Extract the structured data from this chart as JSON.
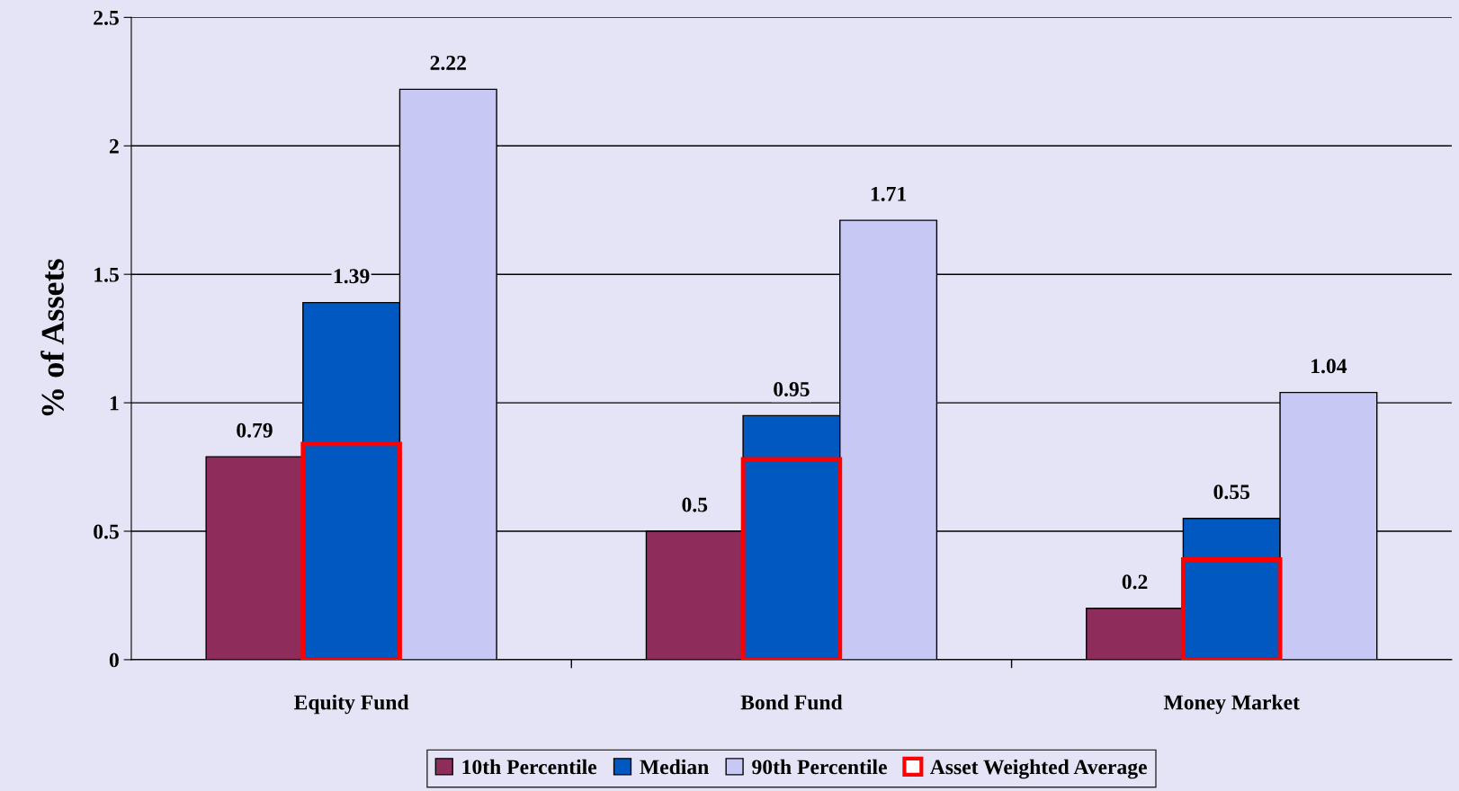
{
  "chart_data": {
    "type": "bar",
    "ylabel": "% of Assets",
    "categories": [
      "Equity Fund",
      "Bond Fund",
      "Money Market"
    ],
    "series": [
      {
        "name": "10th Percentile",
        "color": "#8e2c5c",
        "values": [
          0.79,
          0.5,
          0.2
        ],
        "value_labels": [
          "0.79",
          "0.5",
          "0.2"
        ]
      },
      {
        "name": "Median",
        "color": "#0058c0",
        "values": [
          1.39,
          0.95,
          0.55
        ],
        "value_labels": [
          "1.39",
          "0.95",
          "0.55"
        ]
      },
      {
        "name": "90th Percentile",
        "color": "#c8c8f4",
        "values": [
          2.22,
          1.71,
          1.04
        ],
        "value_labels": [
          "2.22",
          "1.71",
          "1.04"
        ]
      },
      {
        "name": "Asset Weighted Average",
        "color": "#ff0000",
        "marker": "square",
        "values": [
          0.84,
          0.78,
          0.39
        ]
      }
    ],
    "ylim": [
      0,
      2.5
    ],
    "yticks": [
      0,
      0.5,
      1,
      1.5,
      2,
      2.5
    ],
    "grid": "y",
    "legend": "bottom"
  }
}
